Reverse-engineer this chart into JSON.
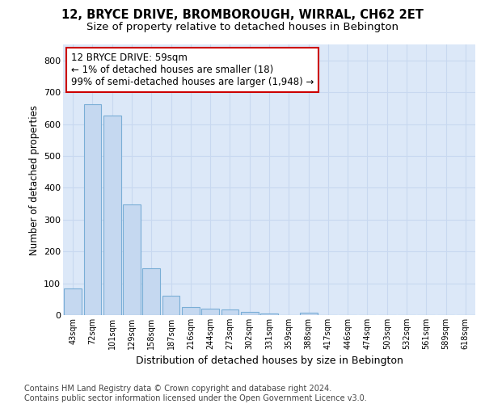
{
  "title1": "12, BRYCE DRIVE, BROMBOROUGH, WIRRAL, CH62 2ET",
  "title2": "Size of property relative to detached houses in Bebington",
  "xlabel": "Distribution of detached houses by size in Bebington",
  "ylabel": "Number of detached properties",
  "footer": "Contains HM Land Registry data © Crown copyright and database right 2024.\nContains public sector information licensed under the Open Government Licence v3.0.",
  "categories": [
    "43sqm",
    "72sqm",
    "101sqm",
    "129sqm",
    "158sqm",
    "187sqm",
    "216sqm",
    "244sqm",
    "273sqm",
    "302sqm",
    "331sqm",
    "359sqm",
    "388sqm",
    "417sqm",
    "446sqm",
    "474sqm",
    "503sqm",
    "532sqm",
    "561sqm",
    "589sqm",
    "618sqm"
  ],
  "values": [
    83,
    663,
    627,
    348,
    148,
    62,
    25,
    20,
    17,
    11,
    6,
    0,
    8,
    0,
    0,
    0,
    0,
    0,
    0,
    0,
    0
  ],
  "bar_color": "#c5d8f0",
  "bar_edgecolor": "#7aaed6",
  "highlight_color": "#cc0000",
  "annotation_text": "12 BRYCE DRIVE: 59sqm\n← 1% of detached houses are smaller (18)\n99% of semi-detached houses are larger (1,948) →",
  "ylim": [
    0,
    850
  ],
  "yticks": [
    0,
    100,
    200,
    300,
    400,
    500,
    600,
    700,
    800
  ],
  "grid_color": "#c8d8f0",
  "bg_color": "#dce8f8",
  "title1_fontsize": 10.5,
  "title2_fontsize": 9.5,
  "xlabel_fontsize": 9,
  "ylabel_fontsize": 8.5,
  "tick_fontsize": 8,
  "xtick_fontsize": 7,
  "footer_fontsize": 7.0,
  "annotation_fontsize": 8.5
}
